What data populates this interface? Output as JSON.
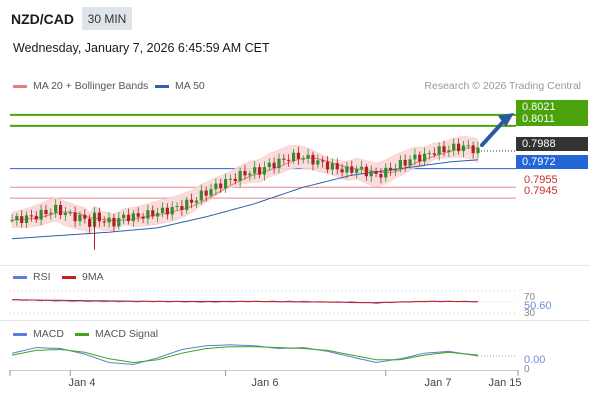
{
  "header": {
    "pair": "NZD/CAD",
    "timeframe": "30 MIN",
    "datetime": "Wednesday, January 7, 2026 6:45:59 AM CET"
  },
  "legend": {
    "ma20_label": "MA 20 + Bollinger Bands",
    "ma50_label": "MA 50",
    "copyright": "Research © 2026 Trading Central"
  },
  "colors": {
    "ma20": "#f07a7a",
    "ma50": "#3160a8",
    "bands_fill": "#fbd9d9",
    "candle_up": "#2f8f2f",
    "candle_down": "#b02020",
    "resistance": "#4ba30b",
    "support": "#d12a2a",
    "pivot": "#2466d6",
    "rsi": "#5b7fd6",
    "rsi_ma": "#cc1d1d",
    "macd": "#5b7fd6",
    "macd_signal": "#3fa51f"
  },
  "levels": {
    "r2": "0.8021",
    "r1": "0.8011",
    "last": "0.7988",
    "pivot": "0.7972",
    "s1": "0.7955",
    "s2": "0.7945"
  },
  "rsi": {
    "label": "RSI",
    "ma_label": "9MA",
    "value": "50.60",
    "upper_tick": "70",
    "lower_tick": "30"
  },
  "macd": {
    "label": "MACD",
    "signal_label": "MACD Signal",
    "value": "0.00",
    "zero_tick": "0"
  },
  "x_axis": {
    "labels": [
      "Jan 4",
      "Jan 6",
      "Jan 7",
      "Jan 15"
    ]
  },
  "chart_data": {
    "type": "line",
    "title": "NZD/CAD",
    "price_range": [
      0.7895,
      0.803
    ],
    "price_path": [
      [
        0,
        0.7925
      ],
      [
        3,
        0.7927
      ],
      [
        5,
        0.7929
      ],
      [
        7,
        0.7932
      ],
      [
        9,
        0.7935
      ],
      [
        11,
        0.7931
      ],
      [
        13,
        0.7928
      ],
      [
        15,
        0.7926
      ],
      [
        16,
        0.7922
      ],
      [
        17,
        0.7928
      ],
      [
        19,
        0.7924
      ],
      [
        21,
        0.7923
      ],
      [
        23,
        0.7928
      ],
      [
        25,
        0.7928
      ],
      [
        27,
        0.7929
      ],
      [
        29,
        0.7931
      ],
      [
        31,
        0.7933
      ],
      [
        33,
        0.7935
      ],
      [
        35,
        0.7938
      ],
      [
        37,
        0.7942
      ],
      [
        39,
        0.7948
      ],
      [
        41,
        0.7953
      ],
      [
        43,
        0.7958
      ],
      [
        45,
        0.7962
      ],
      [
        47,
        0.7966
      ],
      [
        49,
        0.7969
      ],
      [
        51,
        0.797
      ],
      [
        53,
        0.7975
      ],
      [
        55,
        0.7978
      ],
      [
        57,
        0.7982
      ],
      [
        59,
        0.7983
      ],
      [
        61,
        0.7981
      ],
      [
        63,
        0.7978
      ],
      [
        65,
        0.7975
      ],
      [
        67,
        0.7972
      ],
      [
        69,
        0.797
      ],
      [
        71,
        0.7972
      ],
      [
        73,
        0.7969
      ],
      [
        75,
        0.7966
      ],
      [
        77,
        0.7969
      ],
      [
        79,
        0.7974
      ],
      [
        81,
        0.7978
      ],
      [
        83,
        0.7982
      ],
      [
        85,
        0.7983
      ],
      [
        87,
        0.7988
      ],
      [
        89,
        0.7989
      ],
      [
        91,
        0.7991
      ],
      [
        93,
        0.7992
      ],
      [
        95,
        0.799
      ],
      [
        96,
        0.7988
      ]
    ],
    "ma50_path": [
      [
        0,
        0.7908
      ],
      [
        10,
        0.7911
      ],
      [
        20,
        0.7914
      ],
      [
        30,
        0.7918
      ],
      [
        40,
        0.7928
      ],
      [
        50,
        0.794
      ],
      [
        60,
        0.7955
      ],
      [
        70,
        0.7966
      ],
      [
        80,
        0.7972
      ],
      [
        90,
        0.7978
      ],
      [
        96,
        0.798
      ]
    ],
    "rsi_path": [
      [
        0,
        54
      ],
      [
        10,
        52
      ],
      [
        20,
        51
      ],
      [
        30,
        51
      ],
      [
        40,
        50
      ],
      [
        50,
        51
      ],
      [
        60,
        51
      ],
      [
        65,
        50
      ],
      [
        70,
        50
      ],
      [
        75,
        48
      ],
      [
        80,
        50
      ],
      [
        85,
        51
      ],
      [
        90,
        51
      ],
      [
        96,
        50.6
      ]
    ],
    "rsi_ma_path": [
      [
        0,
        54
      ],
      [
        10,
        53
      ],
      [
        20,
        52
      ],
      [
        30,
        51
      ],
      [
        40,
        51
      ],
      [
        50,
        51
      ],
      [
        60,
        50
      ],
      [
        65,
        50
      ],
      [
        70,
        49
      ],
      [
        75,
        49
      ],
      [
        80,
        50
      ],
      [
        85,
        51
      ],
      [
        90,
        51
      ],
      [
        96,
        50.6
      ]
    ],
    "macd_path": [
      [
        0,
        0.3
      ],
      [
        5,
        0.9
      ],
      [
        10,
        0.8
      ],
      [
        15,
        0.2
      ],
      [
        20,
        -0.7
      ],
      [
        25,
        -0.9
      ],
      [
        30,
        -0.2
      ],
      [
        35,
        0.7
      ],
      [
        40,
        1.1
      ],
      [
        45,
        1.2
      ],
      [
        50,
        1.1
      ],
      [
        55,
        0.8
      ],
      [
        60,
        0.9
      ],
      [
        65,
        0.5
      ],
      [
        70,
        -0.1
      ],
      [
        75,
        -0.7
      ],
      [
        80,
        -0.3
      ],
      [
        85,
        0.3
      ],
      [
        90,
        0.5
      ],
      [
        96,
        0.0
      ]
    ],
    "macd_signal_path": [
      [
        0,
        0.1
      ],
      [
        5,
        0.6
      ],
      [
        10,
        0.7
      ],
      [
        15,
        0.4
      ],
      [
        20,
        -0.3
      ],
      [
        25,
        -0.7
      ],
      [
        30,
        -0.4
      ],
      [
        35,
        0.3
      ],
      [
        40,
        0.8
      ],
      [
        45,
        1.0
      ],
      [
        50,
        1.0
      ],
      [
        55,
        0.9
      ],
      [
        60,
        0.8
      ],
      [
        65,
        0.6
      ],
      [
        70,
        0.1
      ],
      [
        75,
        -0.4
      ],
      [
        80,
        -0.4
      ],
      [
        85,
        0.1
      ],
      [
        90,
        0.4
      ],
      [
        96,
        0.1
      ]
    ],
    "macd_range": [
      -1.5,
      1.5
    ],
    "rsi_range": [
      25,
      75
    ],
    "x_ticks": [
      {
        "label": "Jan 4",
        "i": 12
      },
      {
        "label": "Jan 6",
        "i": 44
      },
      {
        "label": "Jan 7",
        "i": 77
      },
      {
        "label": "Jan 15",
        "i": 89.5
      }
    ],
    "forecast_target": "0.8021"
  }
}
